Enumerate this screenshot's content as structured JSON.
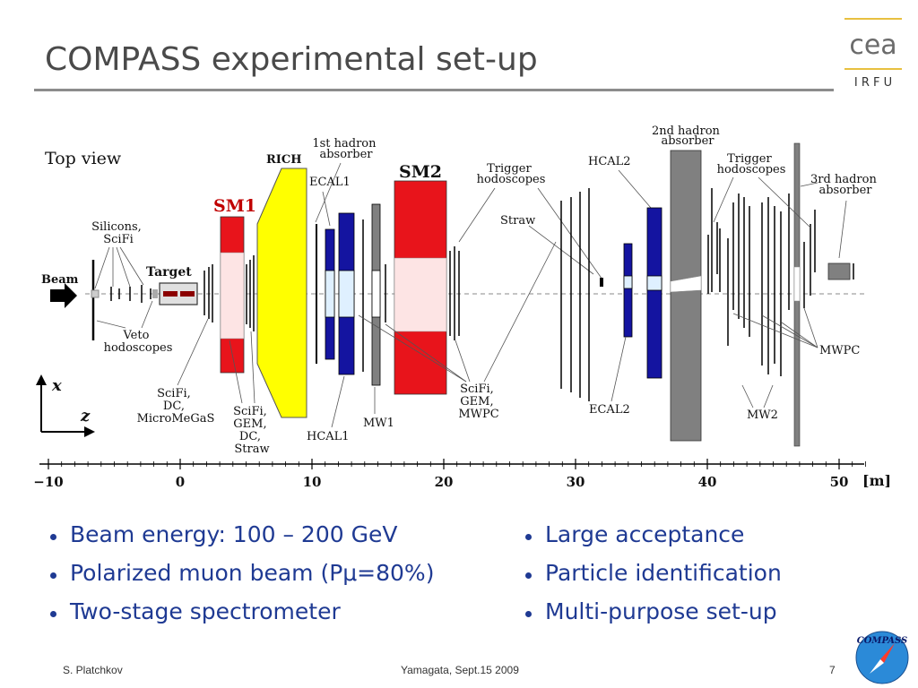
{
  "slide": {
    "title": "COMPASS experimental set-up",
    "bullets_left": [
      "Beam energy: 100 – 200 GeV",
      "Polarized muon beam (Pμ=80%)",
      "Two-stage spectrometer"
    ],
    "bullets_right": [
      "Large acceptance",
      "Particle identification",
      "Multi-purpose set-up"
    ],
    "footer": {
      "author": "S. Platchkov",
      "event": "Yamagata, Sept.15 2009",
      "page": "7"
    }
  },
  "logo": {
    "text": "cea",
    "subtext": "I R F U",
    "accent": "#e8c040"
  },
  "badge": {
    "text": "COMPASS"
  },
  "diagram": {
    "view_label": "Top view",
    "labels": {
      "beam": "Beam",
      "target": "Target",
      "silicons": [
        "Silicons,",
        "SciFi"
      ],
      "veto": [
        "Veto",
        "hodoscopes"
      ],
      "scifi_dc_mm": [
        "SciFi,",
        "DC,",
        "MicroMeGaS"
      ],
      "sm1": "SM1",
      "scifi_gem_dc_straw": [
        "SciFi,",
        "GEM,",
        "DC,",
        "Straw"
      ],
      "rich": "RICH",
      "hadron1": [
        "1st hadron",
        "absorber"
      ],
      "ecal1": "ECAL1",
      "hcal1": "HCAL1",
      "mw1": "MW1",
      "sm2": "SM2",
      "trigger1": [
        "Trigger",
        "hodoscopes"
      ],
      "straw": "Straw",
      "scifi_gem_mwpc": [
        "SciFi,",
        "GEM,",
        "MWPC"
      ],
      "hcal2": "HCAL2",
      "ecal2": "ECAL2",
      "hadron2": [
        "2nd hadron",
        "absorber"
      ],
      "trigger2": [
        "Trigger",
        "hodoscopes"
      ],
      "hadron3": [
        "3rd hadron",
        "absorber"
      ],
      "mwpc": "MWPC",
      "mw2": "MW2",
      "axis_x": "x",
      "axis_z": "z"
    },
    "axis": {
      "ticks": [
        -10,
        0,
        10,
        20,
        30,
        40,
        50
      ],
      "tick_labels": [
        "−10",
        "0",
        "10",
        "20",
        "30",
        "40",
        "50"
      ],
      "unit": "[m]"
    },
    "colors": {
      "magnet": "#e8141b",
      "magnet_gap": "#fde4e4",
      "rich": "#ffff00",
      "calorimeter": "#1414a0",
      "absorber": "#808080"
    }
  }
}
